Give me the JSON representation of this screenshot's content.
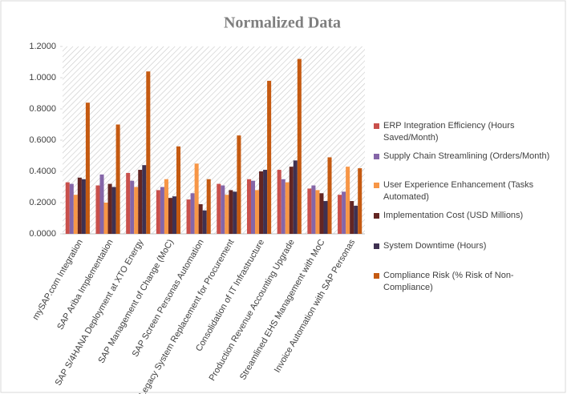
{
  "chart_data": {
    "type": "bar",
    "title": "Normalized Data",
    "categories": [
      "mySAP.com Integration",
      "SAP Ariba Implementation",
      "SAP S/4HANA Deployment at XTO Energy",
      "SAP Management of Change (MoC)",
      "SAP Screen Personas Automation",
      "Legacy System Replacement for Procurement",
      "Consolidation of IT Infrastructure",
      "Production Revenue Accounting Upgrade",
      "Streamlined EHS Management with MoC",
      "Invoice Automation with SAP Personas"
    ],
    "series": [
      {
        "name": "ERP Integration Efficiency (Hours Saved/Month)",
        "color": "#c9504c",
        "values": [
          0.33,
          0.31,
          0.39,
          0.28,
          0.22,
          0.32,
          0.35,
          0.41,
          0.29,
          0.25
        ]
      },
      {
        "name": "Supply Chain Streamlining (Orders/Month)",
        "color": "#8566a8",
        "values": [
          0.32,
          0.38,
          0.34,
          0.3,
          0.26,
          0.31,
          0.34,
          0.35,
          0.31,
          0.27
        ]
      },
      {
        "name": "User Experience Enhancement (Tasks Automated)",
        "color": "#f79646",
        "values": [
          0.25,
          0.2,
          0.3,
          0.35,
          0.45,
          0.25,
          0.28,
          0.33,
          0.28,
          0.43
        ]
      },
      {
        "name": "Implementation Cost (USD Millions)",
        "color": "#632523",
        "values": [
          0.36,
          0.32,
          0.41,
          0.23,
          0.19,
          0.28,
          0.4,
          0.43,
          0.26,
          0.21
        ]
      },
      {
        "name": "System Downtime (Hours)",
        "color": "#3f3151",
        "values": [
          0.35,
          0.3,
          0.44,
          0.24,
          0.15,
          0.27,
          0.41,
          0.47,
          0.21,
          0.18
        ]
      },
      {
        "name": "Compliance Risk (% Risk of Non-Compliance)",
        "color": "#c55a11",
        "values": [
          0.84,
          0.7,
          1.04,
          0.56,
          0.35,
          0.63,
          0.98,
          1.12,
          0.49,
          0.42
        ]
      }
    ],
    "ylim": [
      0,
      1.2
    ],
    "yticks": [
      {
        "value": 0,
        "label": "0.0000"
      },
      {
        "value": 0.2,
        "label": "0.2000"
      },
      {
        "value": 0.4,
        "label": "0.4000"
      },
      {
        "value": 0.6,
        "label": "0.6000"
      },
      {
        "value": 0.8,
        "label": "0.8000"
      },
      {
        "value": 1.0,
        "label": "1.0000"
      },
      {
        "value": 1.2,
        "label": "1.2000"
      }
    ],
    "legend": "right"
  }
}
